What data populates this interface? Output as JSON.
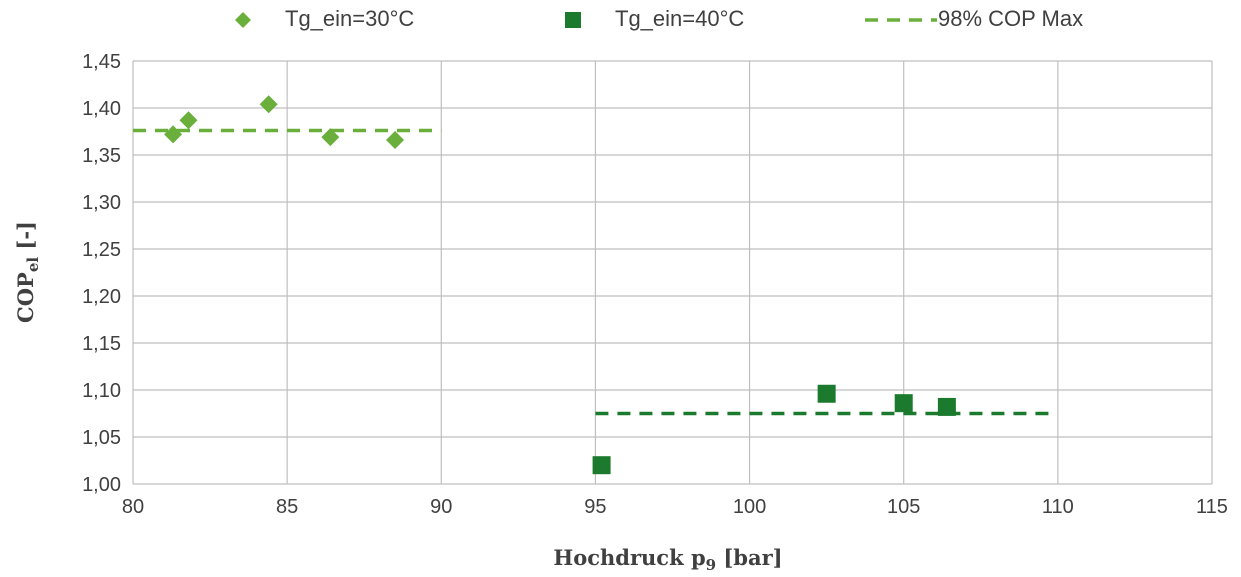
{
  "chart_data": {
    "type": "scatter",
    "xlabel": {
      "main": "Hochdruck p",
      "sub": "9",
      "tail": " [bar]"
    },
    "ylabel": {
      "main": "COP",
      "sub": "el",
      "tail": " [-]"
    },
    "xlim": [
      80,
      115
    ],
    "ylim": [
      1.0,
      1.45
    ],
    "xticks": [
      80,
      85,
      90,
      95,
      100,
      105,
      110,
      115
    ],
    "yticks": [
      1.0,
      1.05,
      1.1,
      1.15,
      1.2,
      1.25,
      1.3,
      1.35,
      1.4,
      1.45
    ],
    "ytick_labels": [
      "1,00",
      "1,05",
      "1,10",
      "1,15",
      "1,20",
      "1,25",
      "1,30",
      "1,35",
      "1,40",
      "1,45"
    ],
    "grid": true,
    "legend_position": "top",
    "series": [
      {
        "name": "Tg_ein=30°C",
        "marker": "diamond",
        "color": "#6aaf3b",
        "points": [
          [
            81.3,
            1.372
          ],
          [
            81.8,
            1.387
          ],
          [
            84.4,
            1.404
          ],
          [
            86.4,
            1.369
          ],
          [
            88.5,
            1.366
          ]
        ]
      },
      {
        "name": "Tg_ein=40°C",
        "marker": "square",
        "color": "#1b7a2d",
        "points": [
          [
            95.2,
            1.02
          ],
          [
            102.5,
            1.096
          ],
          [
            105.0,
            1.086
          ],
          [
            106.4,
            1.082
          ]
        ]
      }
    ],
    "reference_lines": [
      {
        "name": "98% COP Max",
        "color": "#6aaf3b",
        "x": [
          80,
          90
        ],
        "y": 1.376,
        "style": "dashed"
      },
      {
        "name": "98% COP Max",
        "color": "#1b7a2d",
        "x": [
          95,
          109.7
        ],
        "y": 1.075,
        "style": "dashed"
      }
    ]
  }
}
